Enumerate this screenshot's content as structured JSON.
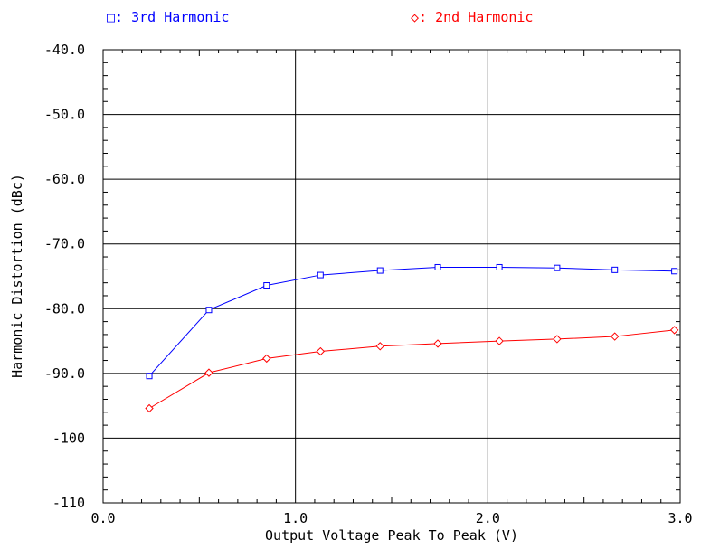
{
  "chart_data": {
    "type": "line",
    "title": "",
    "xlabel": "Output Voltage Peak To Peak (V)",
    "ylabel": "Harmonic Distortion (dBc)",
    "xlim": [
      0,
      3
    ],
    "ylim": [
      -110,
      -40
    ],
    "grid": true,
    "legend_position": "top",
    "x_ticks": [
      {
        "value": 0,
        "label": "0.0"
      },
      {
        "value": 1,
        "label": "1.0"
      },
      {
        "value": 2,
        "label": "2.0"
      },
      {
        "value": 3,
        "label": "3.0"
      }
    ],
    "y_ticks": [
      {
        "value": -40,
        "label": "-40.0"
      },
      {
        "value": -50,
        "label": "-50.0"
      },
      {
        "value": -60,
        "label": "-60.0"
      },
      {
        "value": -70,
        "label": "-70.0"
      },
      {
        "value": -80,
        "label": "-80.0"
      },
      {
        "value": -90,
        "label": "-90.0"
      },
      {
        "value": -100,
        "label": "-100"
      },
      {
        "value": -110,
        "label": "-110"
      }
    ],
    "series": [
      {
        "name": "3rd Harmonic",
        "legend_label": "□: 3rd Harmonic",
        "marker": "square",
        "color": "#0000ff",
        "x": [
          0.24,
          0.55,
          0.85,
          1.13,
          1.44,
          1.74,
          2.06,
          2.36,
          2.66,
          2.97
        ],
        "y": [
          -90.4,
          -80.2,
          -76.4,
          -74.8,
          -74.1,
          -73.6,
          -73.6,
          -73.7,
          -74.0,
          -74.2
        ]
      },
      {
        "name": "2nd Harmonic",
        "legend_label": "◇: 2nd Harmonic",
        "marker": "diamond",
        "color": "#ff0000",
        "x": [
          0.24,
          0.55,
          0.85,
          1.13,
          1.44,
          1.74,
          2.06,
          2.36,
          2.66,
          2.97
        ],
        "y": [
          -95.4,
          -89.9,
          -87.7,
          -86.6,
          -85.8,
          -85.4,
          -85.0,
          -84.7,
          -84.3,
          -83.3
        ]
      }
    ]
  }
}
